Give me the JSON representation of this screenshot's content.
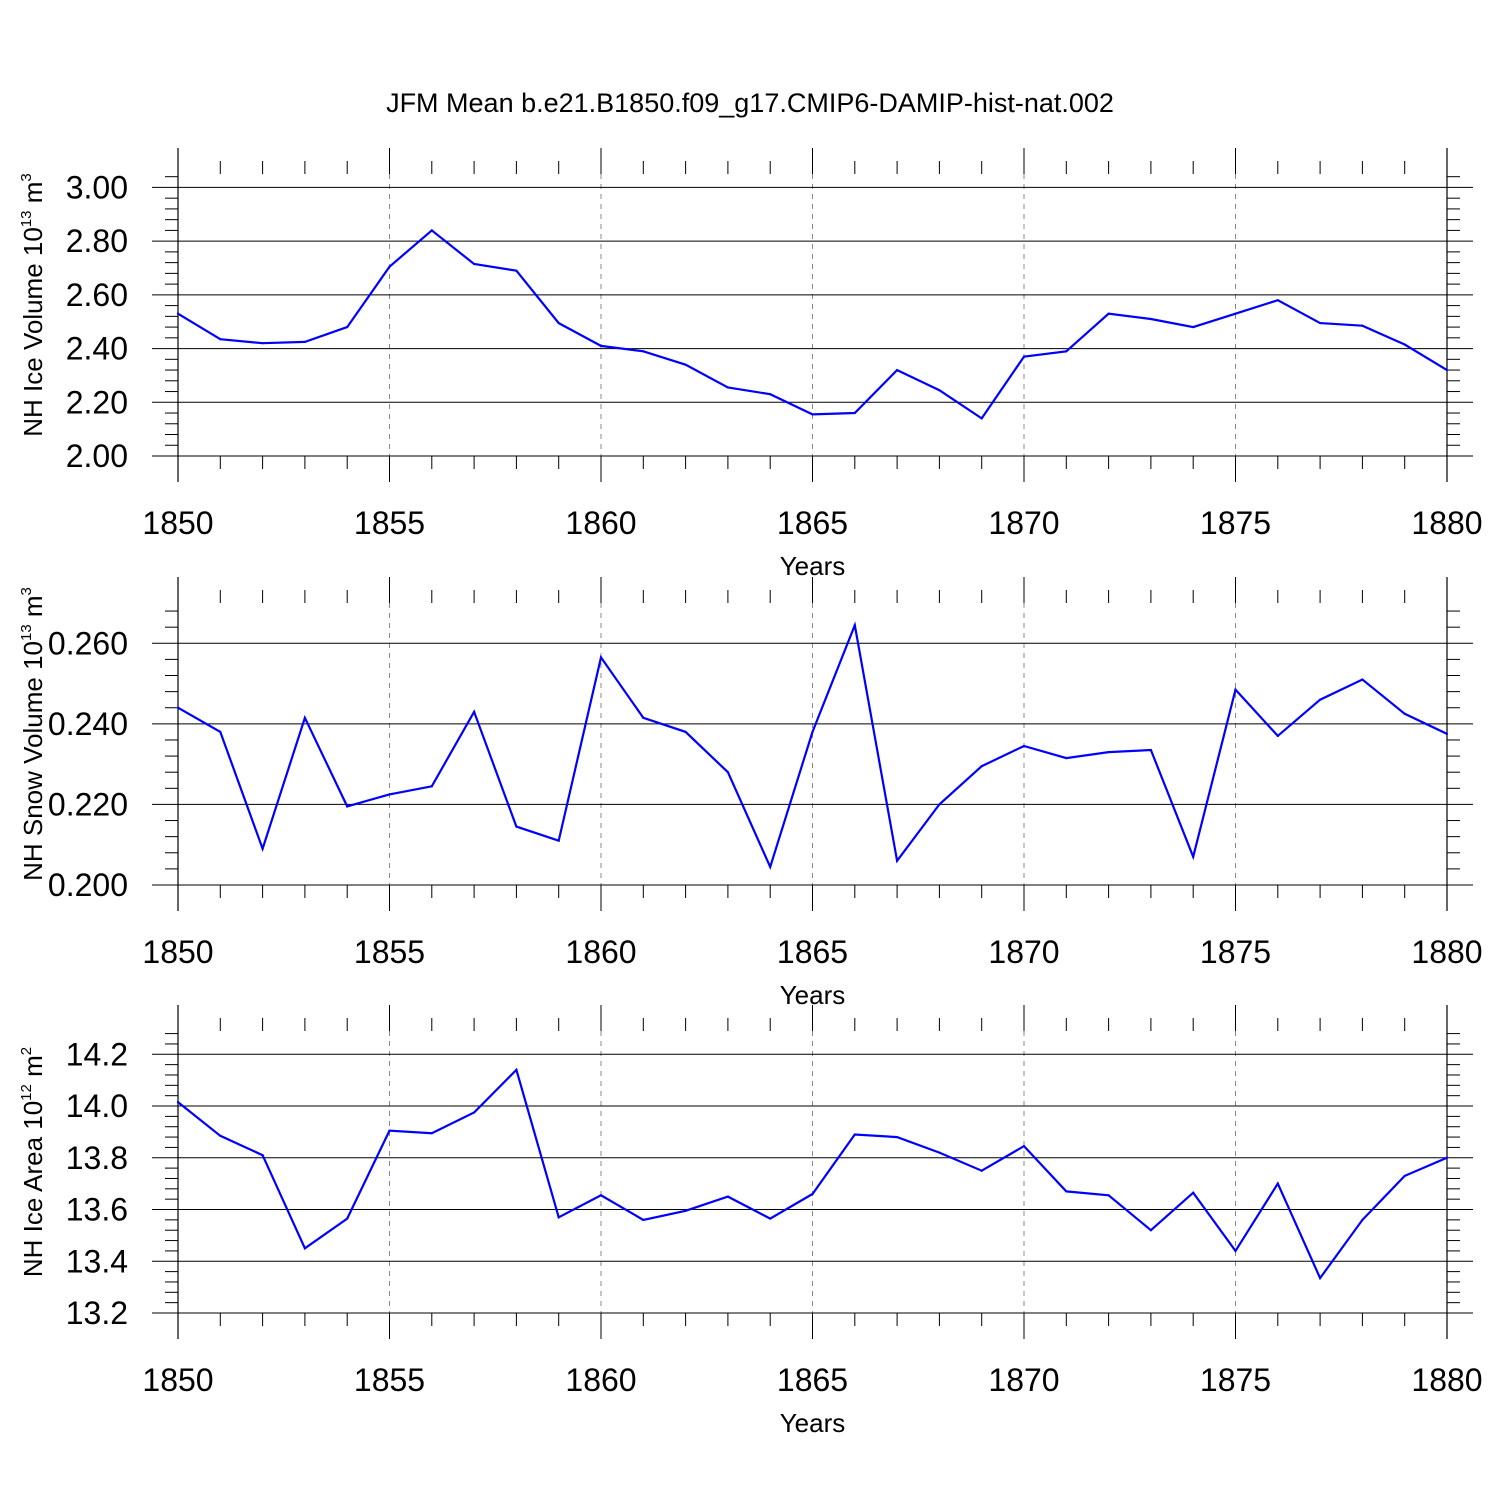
{
  "title": "JFM Mean b.e21.B1850.f09_g17.CMIP6-DAMIP-hist-nat.002",
  "line_color": "#0000ff",
  "grid_color": "#888888",
  "chart_data": [
    {
      "type": "line",
      "xlabel": "Years",
      "ylabel": {
        "text": "NH Ice Volume 10",
        "sup1": "13",
        "mid": " m",
        "sup2": "3"
      },
      "xlim": [
        1850,
        1880
      ],
      "ylim": [
        2.0,
        3.05
      ],
      "x_ticks": [
        "1850",
        "1855",
        "1860",
        "1865",
        "1870",
        "1875",
        "1880"
      ],
      "y_ticks": [
        "2.00",
        "2.20",
        "2.40",
        "2.60",
        "2.80",
        "3.00"
      ],
      "y_tick_values": [
        2.0,
        2.2,
        2.4,
        2.6,
        2.8,
        3.0
      ],
      "grid": "vertical dashed at major x ticks",
      "x": [
        1850,
        1851,
        1852,
        1853,
        1854,
        1855,
        1856,
        1857,
        1858,
        1859,
        1860,
        1861,
        1862,
        1863,
        1864,
        1865,
        1866,
        1867,
        1868,
        1869,
        1870,
        1871,
        1872,
        1873,
        1874,
        1875,
        1876,
        1877,
        1878,
        1879,
        1880
      ],
      "values": [
        2.53,
        2.435,
        2.42,
        2.425,
        2.48,
        2.705,
        2.84,
        2.715,
        2.69,
        2.495,
        2.41,
        2.39,
        2.34,
        2.255,
        2.23,
        2.155,
        2.16,
        2.32,
        2.245,
        2.14,
        2.37,
        2.39,
        2.53,
        2.51,
        2.48,
        2.53,
        2.58,
        2.495,
        2.485,
        2.415,
        2.32
      ]
    },
    {
      "type": "line",
      "xlabel": "Years",
      "ylabel": {
        "text": "NH Snow Volume 10",
        "sup1": "13",
        "mid": " m",
        "sup2": "3"
      },
      "xlim": [
        1850,
        1880
      ],
      "ylim": [
        0.2,
        0.27
      ],
      "x_ticks": [
        "1850",
        "1855",
        "1860",
        "1865",
        "1870",
        "1875",
        "1880"
      ],
      "y_ticks": [
        "0.200",
        "0.220",
        "0.240",
        "0.260"
      ],
      "y_tick_values": [
        0.2,
        0.22,
        0.24,
        0.26
      ],
      "grid": "vertical dashed at major x ticks",
      "x": [
        1850,
        1851,
        1852,
        1853,
        1854,
        1855,
        1856,
        1857,
        1858,
        1859,
        1860,
        1861,
        1862,
        1863,
        1864,
        1865,
        1866,
        1867,
        1868,
        1869,
        1870,
        1871,
        1872,
        1873,
        1874,
        1875,
        1876,
        1877,
        1878,
        1879,
        1880
      ],
      "values": [
        0.244,
        0.238,
        0.209,
        0.2415,
        0.2195,
        0.2225,
        0.2245,
        0.243,
        0.2145,
        0.211,
        0.2565,
        0.2415,
        0.238,
        0.228,
        0.2045,
        0.238,
        0.2645,
        0.206,
        0.22,
        0.2295,
        0.2345,
        0.2315,
        0.233,
        0.2335,
        0.207,
        0.2485,
        0.237,
        0.246,
        0.251,
        0.2425,
        0.2375
      ]
    },
    {
      "type": "line",
      "xlabel": "Years",
      "ylabel": {
        "text": "NH Ice Area 10",
        "sup1": "12",
        "mid": " m",
        "sup2": "2"
      },
      "xlim": [
        1850,
        1880
      ],
      "ylim": [
        13.2,
        14.29
      ],
      "x_ticks": [
        "1850",
        "1855",
        "1860",
        "1865",
        "1870",
        "1875",
        "1880"
      ],
      "y_ticks": [
        "13.2",
        "13.4",
        "13.6",
        "13.8",
        "14.0",
        "14.2"
      ],
      "y_tick_values": [
        13.2,
        13.4,
        13.6,
        13.8,
        14.0,
        14.2
      ],
      "grid": "vertical dashed at major x ticks",
      "x": [
        1850,
        1851,
        1852,
        1853,
        1854,
        1855,
        1856,
        1857,
        1858,
        1859,
        1860,
        1861,
        1862,
        1863,
        1864,
        1865,
        1866,
        1867,
        1868,
        1869,
        1870,
        1871,
        1872,
        1873,
        1874,
        1875,
        1876,
        1877,
        1878,
        1879,
        1880
      ],
      "values": [
        14.015,
        13.885,
        13.81,
        13.45,
        13.565,
        13.905,
        13.895,
        13.975,
        14.14,
        13.57,
        13.655,
        13.56,
        13.595,
        13.65,
        13.565,
        13.66,
        13.89,
        13.88,
        13.82,
        13.75,
        13.845,
        13.67,
        13.655,
        13.52,
        13.665,
        13.44,
        13.7,
        13.335,
        13.56,
        13.73,
        13.8
      ]
    }
  ]
}
